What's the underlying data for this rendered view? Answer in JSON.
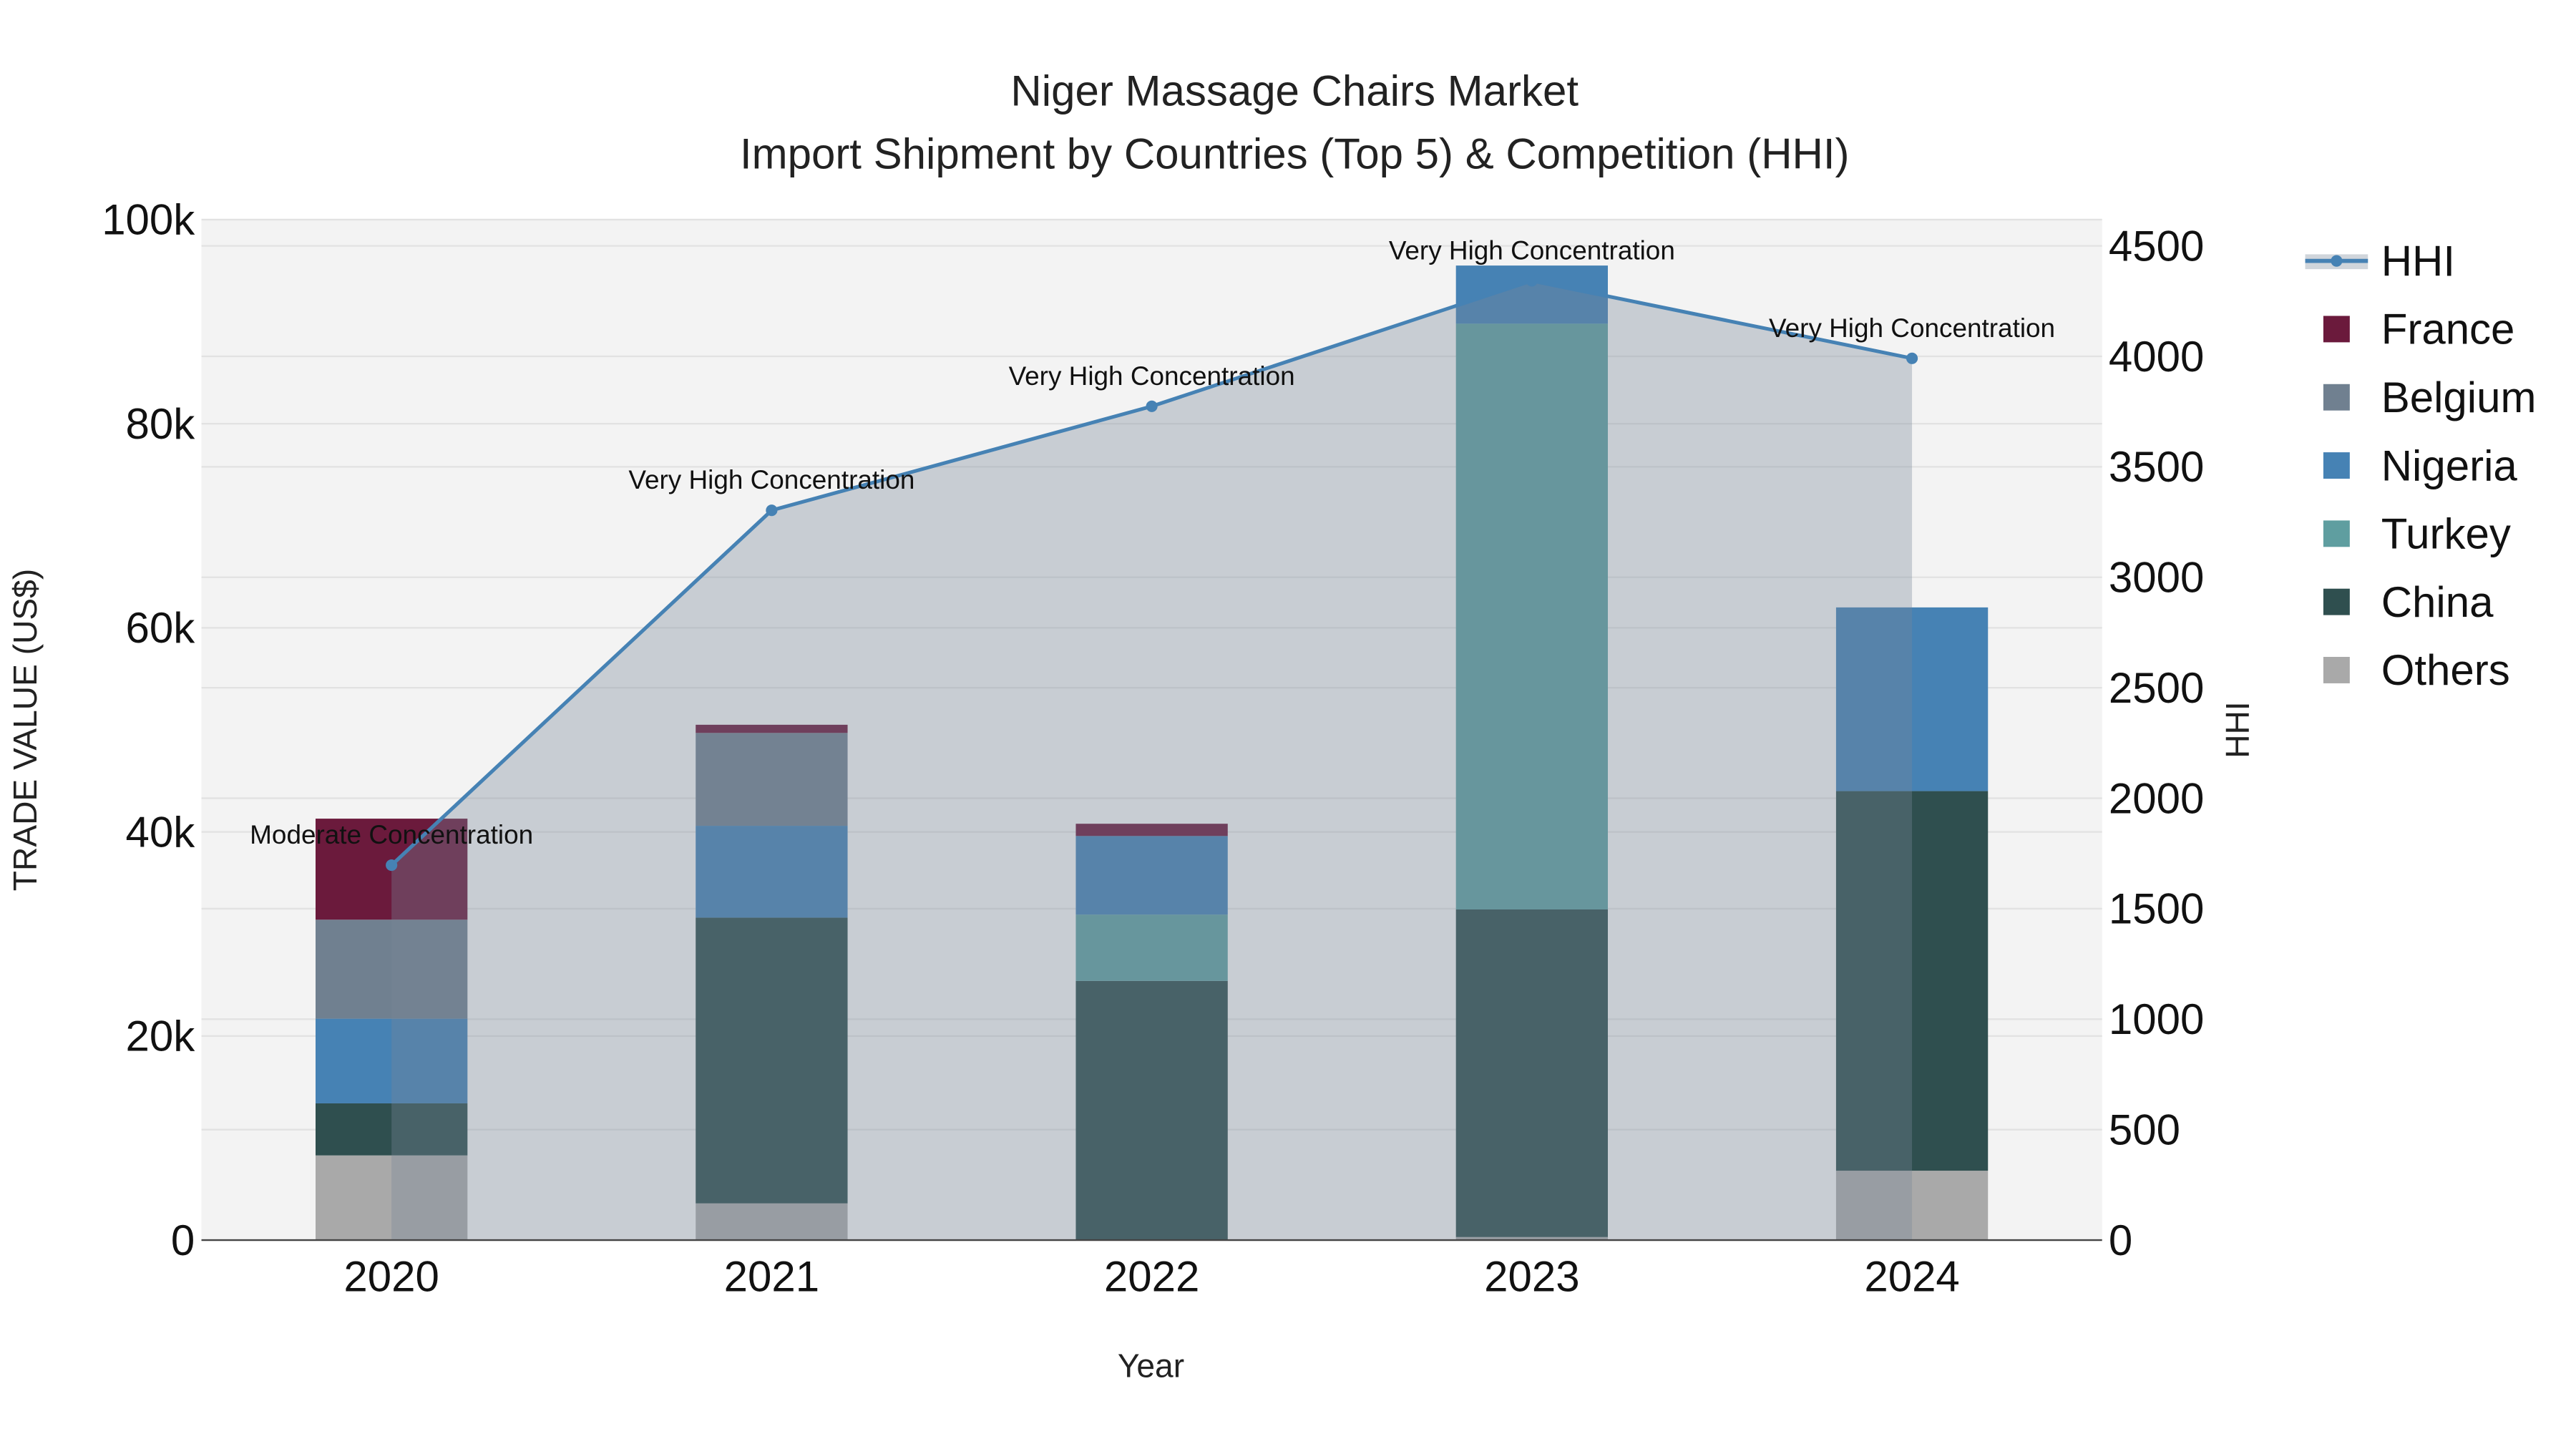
{
  "chart_data": {
    "type": "bar",
    "title_line1": "Niger Massage Chairs Market",
    "title_line2": "Import Shipment by Countries (Top 5) & Competition (HHI)",
    "xlabel": "Year",
    "ylabel": "TRADE VALUE (US$)",
    "y2label": "HHI",
    "ylim": [
      0,
      100000
    ],
    "y2lim": [
      0,
      4620
    ],
    "yticks": [
      0,
      20000,
      40000,
      60000,
      80000,
      100000
    ],
    "ytick_labels": [
      "0",
      "20k",
      "40k",
      "60k",
      "80k",
      "100k"
    ],
    "y2ticks": [
      0,
      500,
      1000,
      1500,
      2000,
      2500,
      3000,
      3500,
      4000,
      4500
    ],
    "y2tick_labels": [
      "0",
      "500",
      "1000",
      "1500",
      "2000",
      "2500",
      "3000",
      "3500",
      "4000",
      "4500"
    ],
    "categories": [
      "2020",
      "2021",
      "2022",
      "2023",
      "2024"
    ],
    "grid": true,
    "legend_placement": "right",
    "series": [
      {
        "name": "Others",
        "color": "#a9a9a9",
        "values": [
          8300,
          3600,
          0,
          300,
          6800
        ]
      },
      {
        "name": "China",
        "color": "#2f4f4f",
        "values": [
          5100,
          28000,
          25400,
          32100,
          37200
        ]
      },
      {
        "name": "Turkey",
        "color": "#5f9ea0",
        "values": [
          0,
          0,
          6500,
          57400,
          0
        ]
      },
      {
        "name": "Nigeria",
        "color": "#4682b4",
        "values": [
          8300,
          9000,
          7700,
          5700,
          18000
        ]
      },
      {
        "name": "Belgium",
        "color": "#708090",
        "values": [
          9700,
          9100,
          0,
          0,
          0
        ]
      },
      {
        "name": "France",
        "color": "#6b1a3c",
        "values": [
          9900,
          800,
          1200,
          0,
          0
        ]
      }
    ],
    "legend_order": [
      "HHI",
      "France",
      "Belgium",
      "Nigeria",
      "Turkey",
      "China",
      "Others"
    ],
    "hhi": {
      "name": "HHI",
      "color": "#4682b4",
      "values": [
        1697,
        3303,
        3774,
        4342,
        3991
      ],
      "annotations": [
        "Moderate Concentration",
        "Very High Concentration",
        "Very High Concentration",
        "Very High Concentration",
        "Very High Concentration"
      ]
    }
  }
}
